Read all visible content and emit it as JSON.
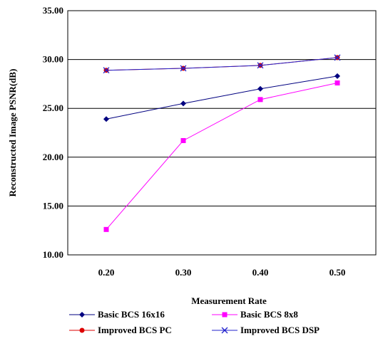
{
  "chart_data": {
    "type": "line",
    "title": "",
    "xlabel": "Measurement Rate",
    "ylabel": "Reconstructed Image PSNR(dB)",
    "categories": [
      "0.20",
      "0.30",
      "0.40",
      "0.50"
    ],
    "x": [
      0.2,
      0.3,
      0.4,
      0.5
    ],
    "ylim": [
      10,
      35
    ],
    "yticks": [
      "10.00",
      "15.00",
      "20.00",
      "25.00",
      "30.00",
      "35.00"
    ],
    "grid": "horizontal",
    "legend_position": "bottom",
    "series": [
      {
        "name": "Basic BCS 16x16",
        "values": [
          23.9,
          25.5,
          27.0,
          28.3
        ],
        "color": "#000080",
        "marker": "diamond"
      },
      {
        "name": "Basic BCS 8x8",
        "values": [
          12.6,
          21.7,
          25.9,
          27.6
        ],
        "color": "#ff00ff",
        "marker": "square"
      },
      {
        "name": "Improved BCS PC",
        "values": [
          28.9,
          29.1,
          29.4,
          30.2
        ],
        "color": "#dd0000",
        "marker": "circle"
      },
      {
        "name": "Improved BCS DSP",
        "values": [
          28.9,
          29.1,
          29.4,
          30.2
        ],
        "color": "#2222cc",
        "marker": "x"
      }
    ]
  }
}
